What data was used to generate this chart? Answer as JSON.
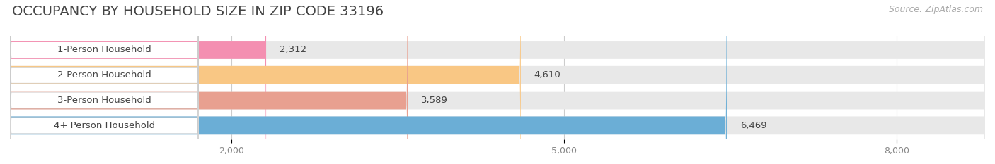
{
  "title": "OCCUPANCY BY HOUSEHOLD SIZE IN ZIP CODE 33196",
  "source": "Source: ZipAtlas.com",
  "categories": [
    "1-Person Household",
    "2-Person Household",
    "3-Person Household",
    "4+ Person Household"
  ],
  "values": [
    2312,
    4610,
    3589,
    6469
  ],
  "value_labels": [
    "2,312",
    "4,610",
    "3,589",
    "6,469"
  ],
  "bar_colors": [
    "#f48fb1",
    "#f9c784",
    "#e8a090",
    "#6baed6"
  ],
  "bar_edge_colors": [
    "#e07090",
    "#e0a030",
    "#c87060",
    "#4a90bf"
  ],
  "label_bg_colors": [
    "#ffffff",
    "#ffffff",
    "#ffffff",
    "#ffffff"
  ],
  "xlim": [
    0,
    8800
  ],
  "xticks": [
    2000,
    5000,
    8000
  ],
  "xtick_labels": [
    "2,000",
    "5,000",
    "8,000"
  ],
  "background_color": "#ffffff",
  "bar_bg_color": "#e8e8e8",
  "title_fontsize": 14,
  "source_fontsize": 9,
  "label_fontsize": 9.5,
  "value_fontsize": 9.5,
  "tick_fontsize": 9
}
